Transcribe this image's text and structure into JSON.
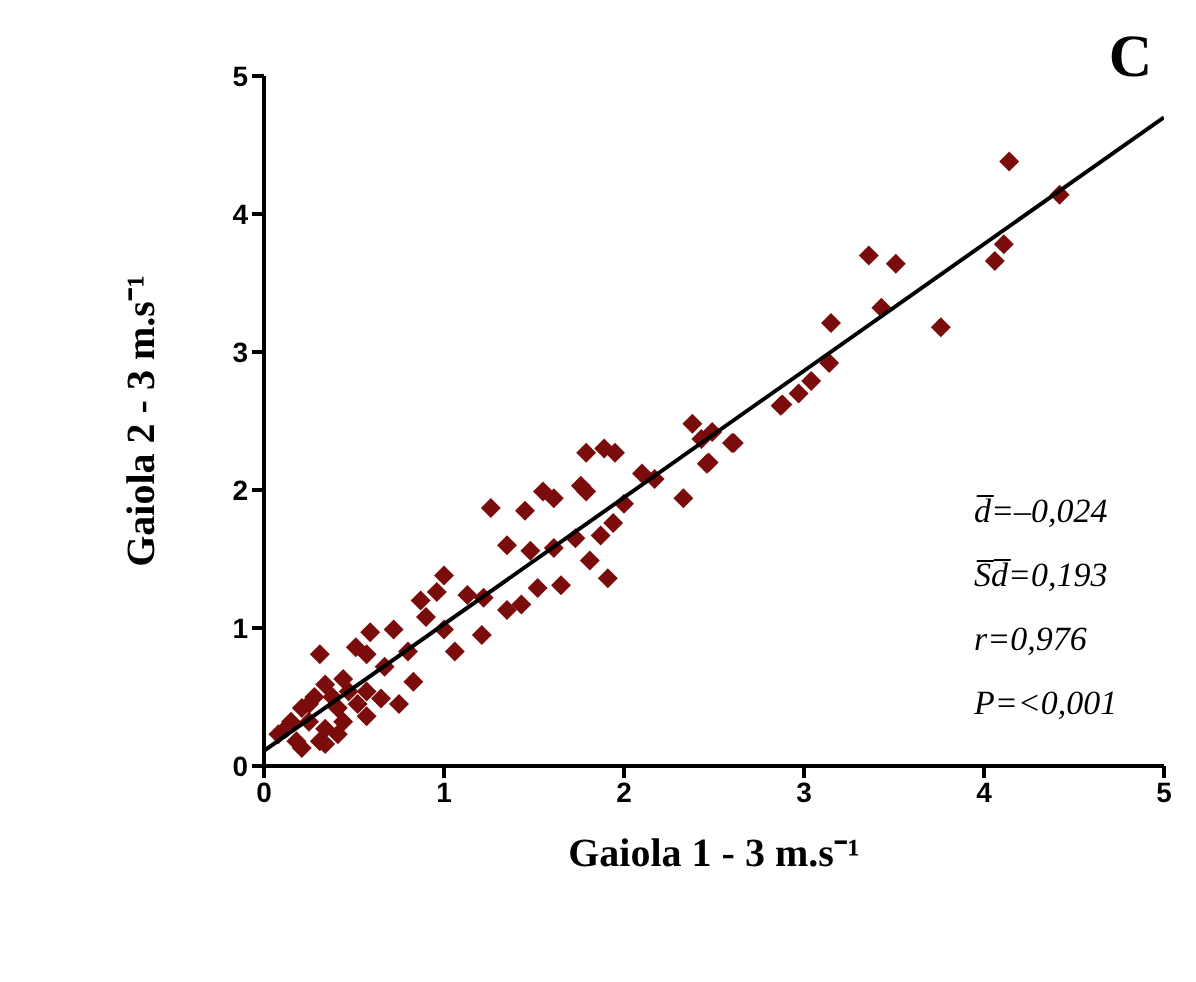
{
  "chart_data": {
    "type": "scatter",
    "title": "C",
    "xlabel": "Gaiola 1 - 3 m.s⁻¹",
    "ylabel": "Gaiola 2 - 3 m.s⁻¹",
    "xlim": [
      0,
      5
    ],
    "xticks": [
      0,
      1,
      2,
      3,
      4,
      5
    ],
    "ylim": [
      0,
      5
    ],
    "yticks": [
      0,
      1,
      2,
      3,
      4,
      5
    ],
    "grid": false,
    "legend": false,
    "annotations": [
      "d̅=–0,024",
      "S̅d̅=0,193",
      "r=0,976",
      "P=<0,001"
    ],
    "series": [
      {
        "marker": "diamond",
        "color": "#7a0c0c",
        "x": [
          4.14,
          4.42,
          4.11,
          4.06,
          3.36,
          3.51,
          3.43,
          3.76,
          3.15,
          3.14,
          3.04,
          2.97,
          2.87,
          2.61,
          2.38,
          2.49,
          2.47,
          2.6,
          2.88,
          1.79,
          1.89,
          1.95,
          2.1,
          2.17,
          2.33,
          2.46,
          2.43,
          1.76,
          1.79,
          1.55,
          1.61,
          1.45,
          1.26,
          1.35,
          1.48,
          1.61,
          1.73,
          1.81,
          1.91,
          1.94,
          2.0,
          1.87,
          1.65,
          1.52,
          1.43,
          1.35,
          1.22,
          1.13,
          1.0,
          0.96,
          0.87,
          0.9,
          1.0,
          1.06,
          1.21,
          0.72,
          0.59,
          0.8,
          0.83,
          0.75,
          0.67,
          0.57,
          0.51,
          0.31,
          0.44,
          0.57,
          0.65,
          0.34,
          0.28,
          0.21,
          0.41,
          0.15,
          0.25,
          0.34,
          0.44,
          0.08,
          0.18,
          0.31,
          0.41,
          0.21,
          0.34,
          0.12,
          0.52,
          0.57,
          0.25,
          0.38,
          0.47
        ],
        "values": [
          4.38,
          4.14,
          3.78,
          3.66,
          3.7,
          3.64,
          3.32,
          3.18,
          3.21,
          2.92,
          2.79,
          2.7,
          2.61,
          2.34,
          2.48,
          2.42,
          2.2,
          2.34,
          2.62,
          2.27,
          2.3,
          2.27,
          2.12,
          2.08,
          1.94,
          2.19,
          2.37,
          2.03,
          1.99,
          1.99,
          1.94,
          1.85,
          1.87,
          1.6,
          1.56,
          1.58,
          1.65,
          1.49,
          1.36,
          1.76,
          1.9,
          1.67,
          1.31,
          1.29,
          1.17,
          1.13,
          1.22,
          1.24,
          1.38,
          1.26,
          1.2,
          1.08,
          0.99,
          0.83,
          0.95,
          0.99,
          0.97,
          0.83,
          0.61,
          0.45,
          0.72,
          0.81,
          0.86,
          0.81,
          0.63,
          0.54,
          0.49,
          0.59,
          0.5,
          0.42,
          0.42,
          0.32,
          0.32,
          0.27,
          0.32,
          0.23,
          0.18,
          0.18,
          0.23,
          0.13,
          0.16,
          0.27,
          0.45,
          0.36,
          0.45,
          0.5,
          0.54
        ]
      },
      {
        "type": "line",
        "color": "#000000",
        "x": [
          0,
          5
        ],
        "values": [
          0.11,
          4.7
        ]
      }
    ]
  }
}
